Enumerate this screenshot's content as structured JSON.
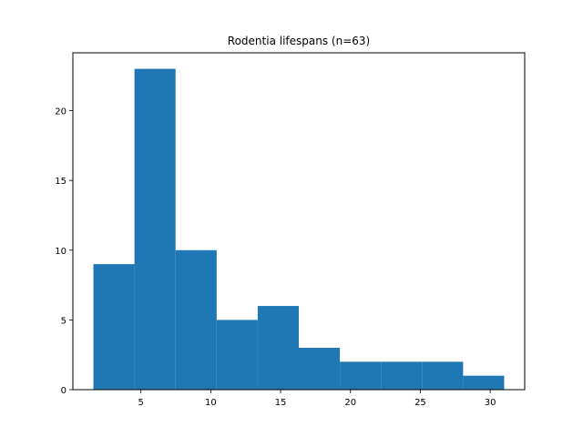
{
  "chart_data": {
    "type": "bar",
    "title": "Rodentia lifespans (n=63)",
    "xlabel": "",
    "ylabel": "",
    "bin_edges": [
      1.6,
      4.54,
      7.48,
      10.42,
      13.36,
      16.3,
      19.24,
      22.18,
      25.12,
      28.06,
      31.0
    ],
    "counts": [
      9,
      23,
      10,
      5,
      6,
      3,
      2,
      2,
      2,
      1
    ],
    "xlim": [
      0.13,
      32.47
    ],
    "ylim": [
      0,
      24.15
    ],
    "xticks": [
      5,
      10,
      15,
      20,
      25,
      30
    ],
    "yticks": [
      0,
      5,
      10,
      15,
      20
    ],
    "bar_color": "#1f77b4",
    "grid": false,
    "legend": "none"
  }
}
